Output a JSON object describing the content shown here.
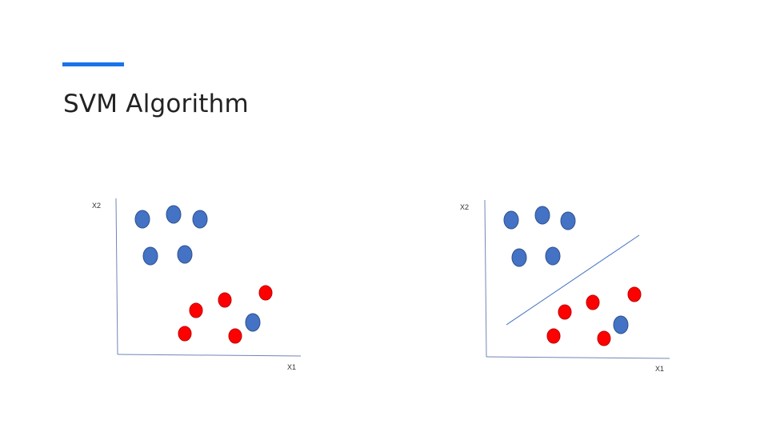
{
  "slide": {
    "title": "SVM Algorithm"
  },
  "colors": {
    "accent": "#1a73e8",
    "axis": "#6f86b8",
    "class_blue": "#4472c4",
    "class_red": "#ff0000"
  },
  "panels": [
    {
      "x_label": "X1",
      "y_label": "X2",
      "has_separator": false
    },
    {
      "x_label": "X1",
      "y_label": "X2",
      "has_separator": true
    }
  ]
}
